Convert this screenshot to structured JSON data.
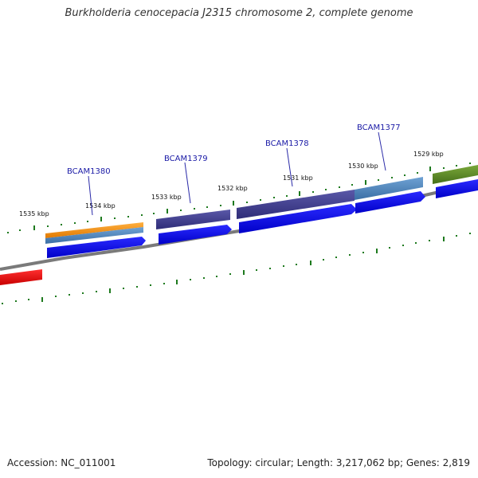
{
  "title": "Burkholderia cenocepacia J2315 chromosome 2, complete genome",
  "footer": {
    "accession": "Accession: NC_011001",
    "summary": "Topology: circular; Length: 3,217,062 bp; Genes: 2,819"
  },
  "kbp_labels": [
    "1535 kbp",
    "1534 kbp",
    "1533 kbp",
    "1532 kbp",
    "1531 kbp",
    "1530 kbp",
    "1529 kbp"
  ],
  "gene_labels": [
    "BCAM1380",
    "BCAM1379",
    "BCAM1378",
    "BCAM1377"
  ],
  "colors": {
    "backbone": "#7a7a7a",
    "tick": "#1e7a1e",
    "cds": "#0000e6",
    "label_line": "#2a2aa8",
    "cog_orange": "#f08c00",
    "cog_steel": "#4f83b8",
    "cog_purple": "#3c3a86",
    "cog_olive": "#5a8a1e",
    "cog_red": "#e60000"
  }
}
